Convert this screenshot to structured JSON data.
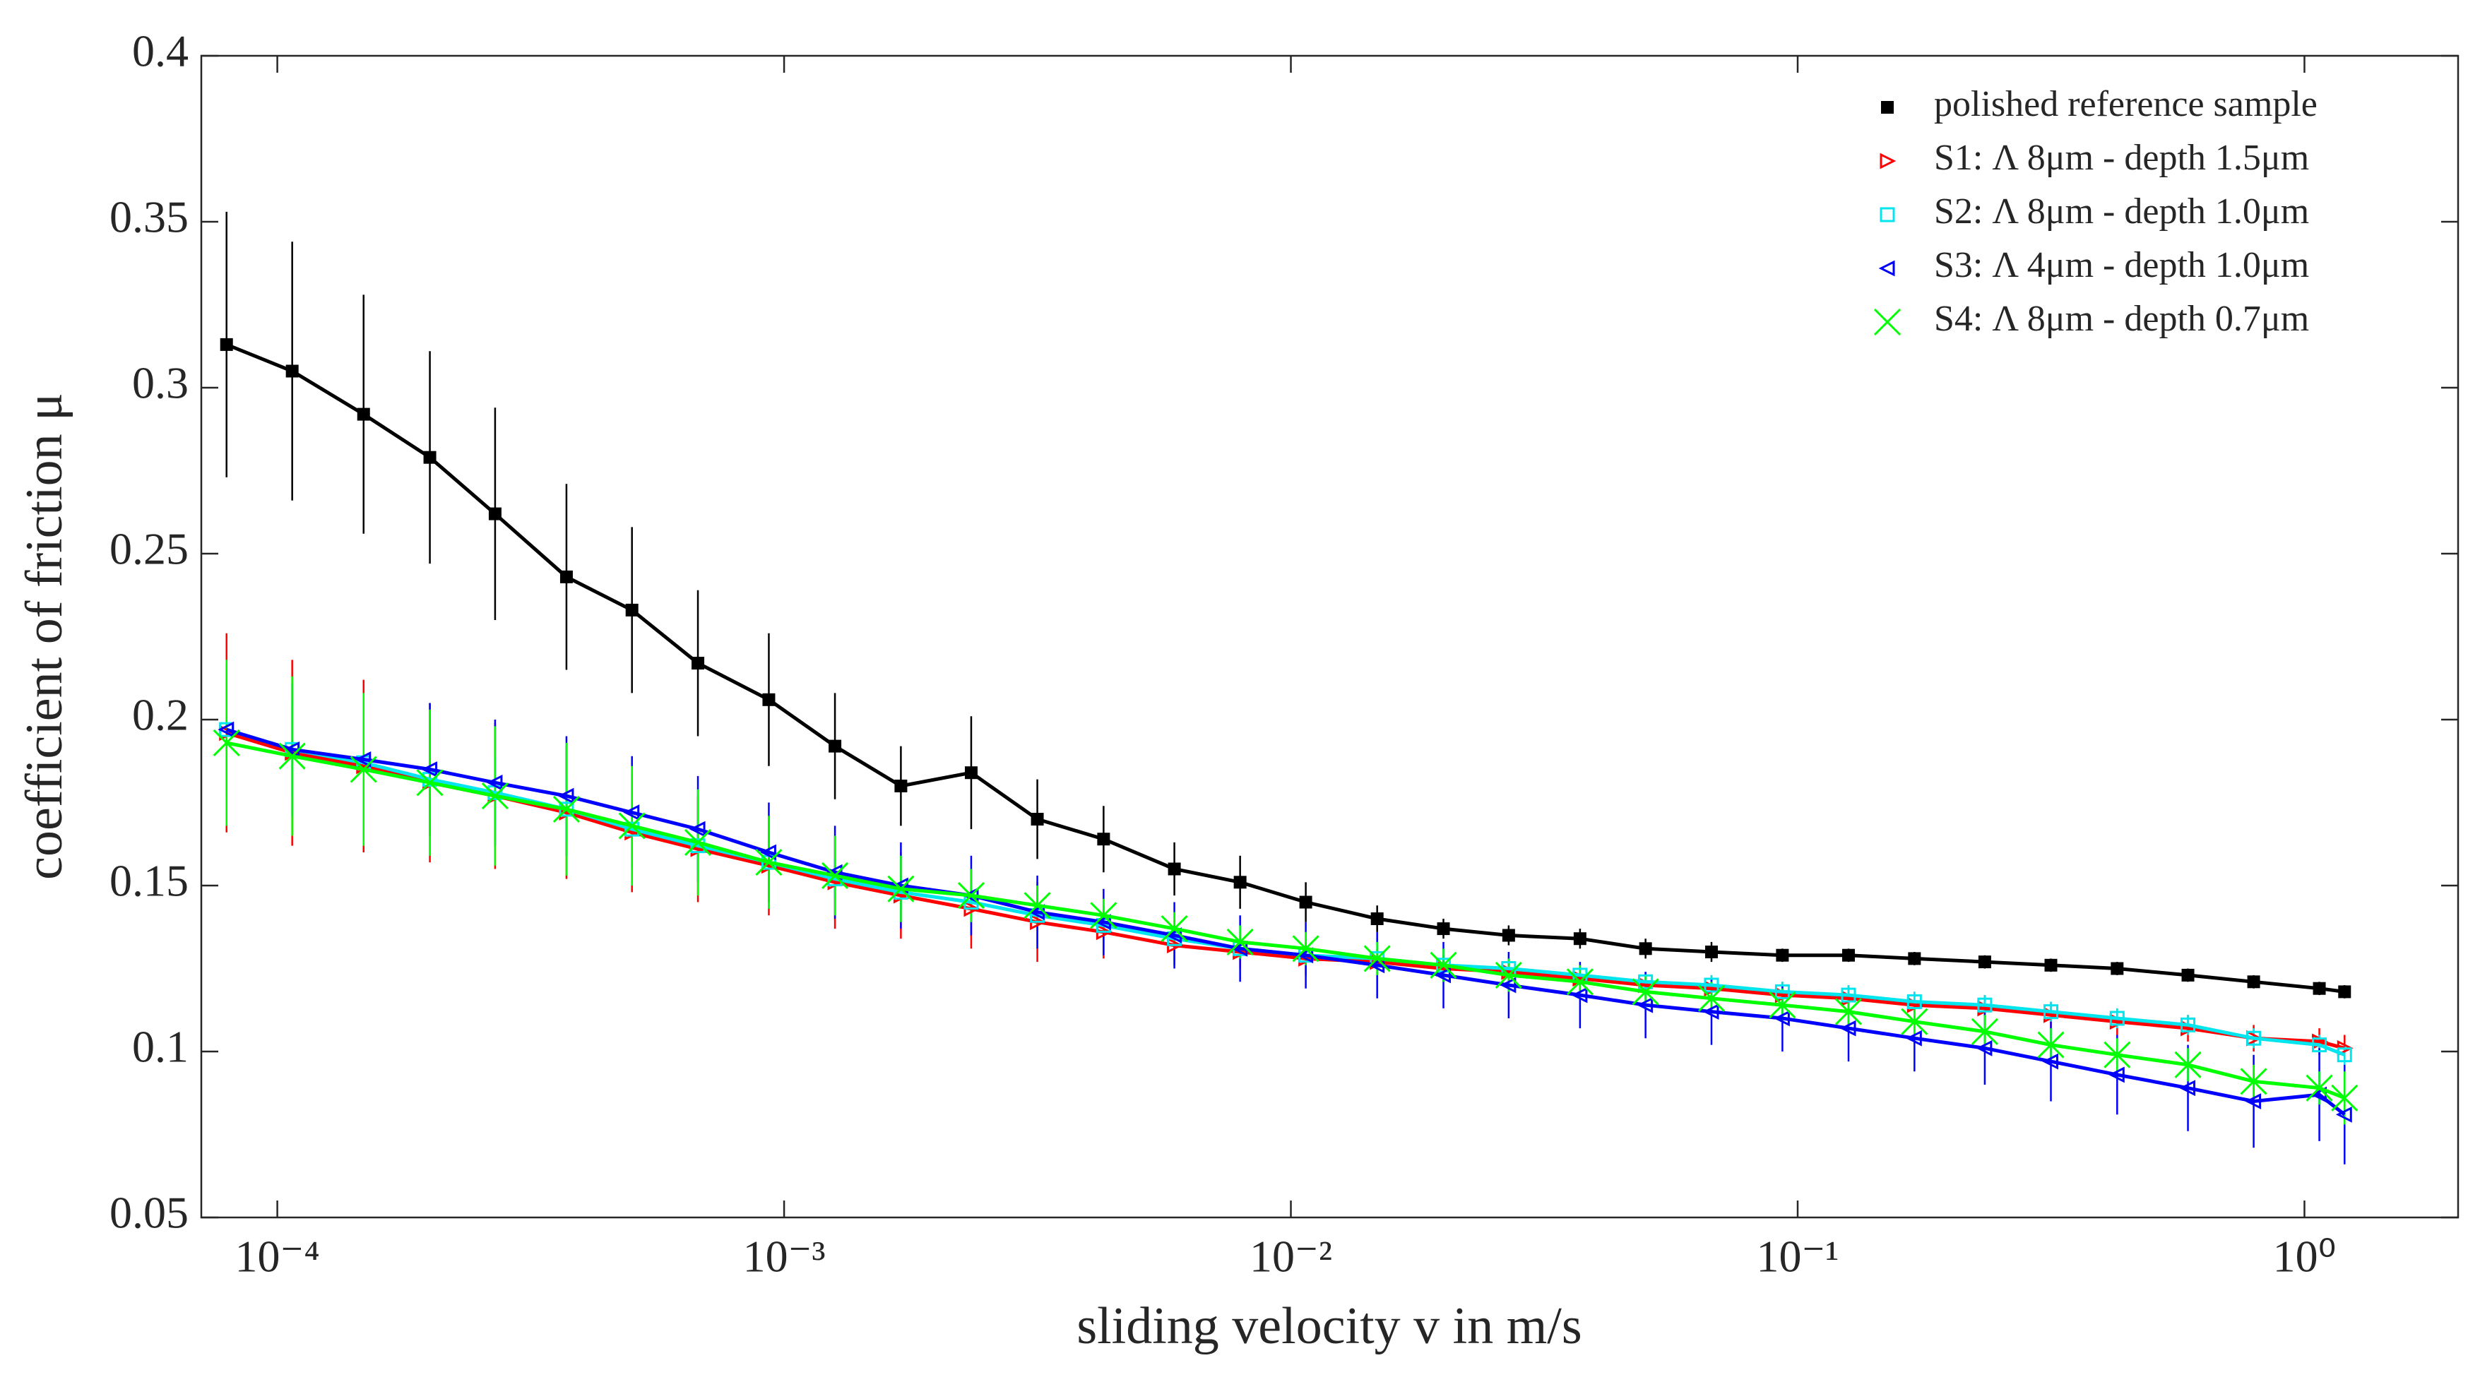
{
  "chart_data": {
    "type": "line",
    "xlabel": "sliding velocity v in m/s",
    "ylabel": "coefficient of friction μ",
    "x_scale": "log",
    "xlim": [
      7.08e-05,
      2.01
    ],
    "ylim": [
      0.05,
      0.4
    ],
    "xticks": [
      {
        "value": 0.0001,
        "label": "10⁻⁴"
      },
      {
        "value": 0.001,
        "label": "10⁻³"
      },
      {
        "value": 0.01,
        "label": "10⁻²"
      },
      {
        "value": 0.1,
        "label": "10⁻¹"
      },
      {
        "value": 1,
        "label": "10⁰"
      }
    ],
    "yticks": [
      0.05,
      0.1,
      0.15,
      0.2,
      0.25,
      0.3,
      0.35,
      0.4
    ],
    "legend": "upper right",
    "x": [
      7.94e-05,
      0.000107,
      0.000148,
      0.0002,
      0.000269,
      0.000372,
      0.000501,
      0.000676,
      0.000933,
      0.00126,
      0.0017,
      0.00234,
      0.00316,
      0.00427,
      0.00589,
      0.00794,
      0.0107,
      0.0148,
      0.02,
      0.0269,
      0.0372,
      0.0501,
      0.0676,
      0.0933,
      0.126,
      0.17,
      0.234,
      0.316,
      0.427,
      0.589,
      0.794,
      1.07,
      1.2
    ],
    "series": [
      {
        "name": "polished reference sample",
        "color": "#000000",
        "marker": "square-filled",
        "values": [
          0.313,
          0.305,
          0.292,
          0.279,
          0.262,
          0.243,
          0.233,
          0.217,
          0.206,
          0.192,
          0.18,
          0.184,
          0.17,
          0.164,
          0.155,
          0.151,
          0.145,
          0.14,
          0.137,
          0.135,
          0.134,
          0.131,
          0.13,
          0.129,
          0.129,
          0.128,
          0.127,
          0.126,
          0.125,
          0.123,
          0.121,
          0.119,
          0.118
        ],
        "errors": [
          0.04,
          0.039,
          0.036,
          0.032,
          0.032,
          0.028,
          0.025,
          0.022,
          0.02,
          0.016,
          0.012,
          0.017,
          0.012,
          0.01,
          0.008,
          0.008,
          0.006,
          0.004,
          0.003,
          0.003,
          0.003,
          0.003,
          0.003,
          0.002,
          0.002,
          0.002,
          0.002,
          0.002,
          0.002,
          0.002,
          0.002,
          0.002,
          0.002
        ]
      },
      {
        "name": "S1: Λ 8μm - depth 1.5μm",
        "color": "#ff0000",
        "marker": "triangle-right",
        "values": [
          0.196,
          0.19,
          0.186,
          0.181,
          0.177,
          0.172,
          0.166,
          0.161,
          0.156,
          0.151,
          0.147,
          0.143,
          0.139,
          0.136,
          0.132,
          0.13,
          0.128,
          0.127,
          0.125,
          0.124,
          0.122,
          0.12,
          0.119,
          0.117,
          0.116,
          0.114,
          0.113,
          0.111,
          0.109,
          0.107,
          0.104,
          0.103,
          0.101
        ],
        "errors": [
          0.03,
          0.028,
          0.026,
          0.024,
          0.022,
          0.02,
          0.018,
          0.016,
          0.015,
          0.014,
          0.013,
          0.012,
          0.012,
          0.008,
          0.006,
          0.005,
          0.005,
          0.004,
          0.004,
          0.004,
          0.004,
          0.004,
          0.004,
          0.004,
          0.004,
          0.004,
          0.004,
          0.004,
          0.004,
          0.004,
          0.004,
          0.004,
          0.004
        ]
      },
      {
        "name": "S2: Λ 8μm - depth 1.0μm",
        "color": "#00e5ee",
        "marker": "square-open",
        "values": [
          0.197,
          0.191,
          0.187,
          0.182,
          0.178,
          0.173,
          0.167,
          0.162,
          0.157,
          0.152,
          0.148,
          0.145,
          0.141,
          0.138,
          0.134,
          0.131,
          0.129,
          0.128,
          0.126,
          0.125,
          0.123,
          0.121,
          0.12,
          0.118,
          0.117,
          0.115,
          0.114,
          0.112,
          0.11,
          0.108,
          0.104,
          0.102,
          0.099
        ],
        "errors": [
          0.015,
          0.014,
          0.013,
          0.012,
          0.011,
          0.01,
          0.009,
          0.008,
          0.007,
          0.006,
          0.005,
          0.005,
          0.004,
          0.004,
          0.003,
          0.003,
          0.003,
          0.003,
          0.003,
          0.003,
          0.003,
          0.003,
          0.003,
          0.003,
          0.003,
          0.003,
          0.003,
          0.003,
          0.003,
          0.003,
          0.003,
          0.003,
          0.003
        ]
      },
      {
        "name": "S3: Λ 4μm - depth 1.0μm",
        "color": "#0000ff",
        "marker": "triangle-left",
        "values": [
          0.197,
          0.191,
          0.188,
          0.185,
          0.181,
          0.177,
          0.172,
          0.167,
          0.16,
          0.154,
          0.15,
          0.147,
          0.142,
          0.139,
          0.135,
          0.131,
          0.129,
          0.126,
          0.123,
          0.12,
          0.117,
          0.114,
          0.112,
          0.11,
          0.107,
          0.104,
          0.101,
          0.097,
          0.093,
          0.089,
          0.085,
          0.087,
          0.081
        ],
        "errors": [
          0.02,
          0.02,
          0.02,
          0.02,
          0.019,
          0.018,
          0.017,
          0.016,
          0.015,
          0.014,
          0.013,
          0.012,
          0.011,
          0.01,
          0.01,
          0.01,
          0.01,
          0.01,
          0.01,
          0.01,
          0.01,
          0.01,
          0.01,
          0.01,
          0.01,
          0.01,
          0.011,
          0.012,
          0.012,
          0.013,
          0.014,
          0.014,
          0.015
        ]
      },
      {
        "name": "S4: Λ 8μm - depth 0.7μm",
        "color": "#00ff00",
        "marker": "x",
        "values": [
          0.193,
          0.189,
          0.185,
          0.181,
          0.177,
          0.173,
          0.168,
          0.163,
          0.157,
          0.153,
          0.149,
          0.147,
          0.144,
          0.141,
          0.137,
          0.133,
          0.131,
          0.128,
          0.126,
          0.123,
          0.121,
          0.118,
          0.116,
          0.114,
          0.112,
          0.109,
          0.106,
          0.102,
          0.099,
          0.096,
          0.091,
          0.089,
          0.086
        ],
        "errors": [
          0.025,
          0.024,
          0.023,
          0.022,
          0.021,
          0.02,
          0.018,
          0.016,
          0.014,
          0.012,
          0.01,
          0.008,
          0.006,
          0.005,
          0.005,
          0.005,
          0.005,
          0.005,
          0.005,
          0.005,
          0.005,
          0.005,
          0.005,
          0.005,
          0.005,
          0.005,
          0.005,
          0.005,
          0.005,
          0.005,
          0.005,
          0.005,
          0.008
        ]
      }
    ]
  }
}
